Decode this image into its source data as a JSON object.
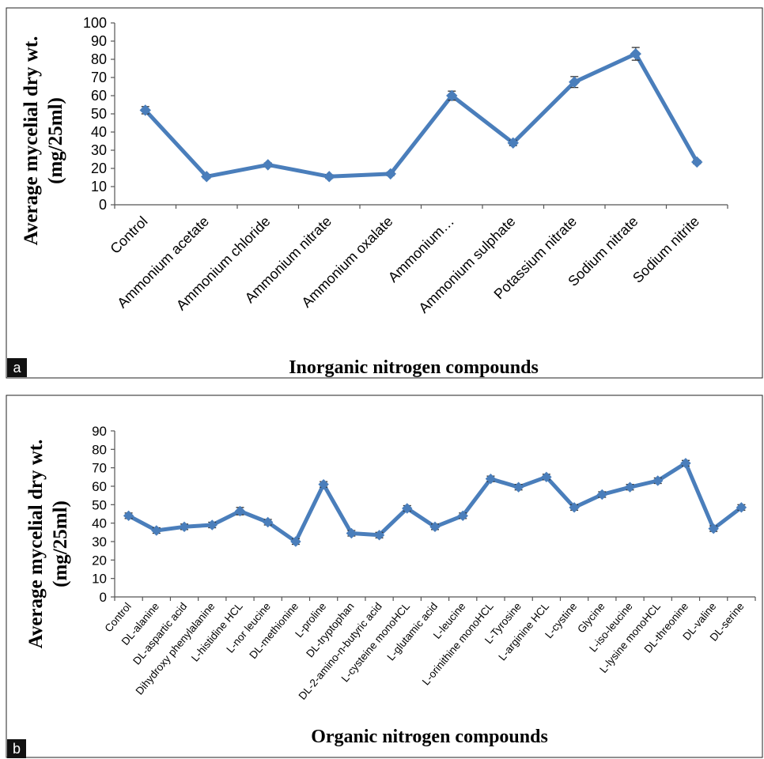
{
  "chart_data": [
    {
      "type": "line",
      "panel_label": "a",
      "xlabel": "Inorganic nitrogen compounds",
      "ylabel_lines": [
        "Average mycelial dry wt.",
        "(mg/25ml)"
      ],
      "ylim": [
        0,
        100
      ],
      "yticks": [
        "0",
        "10",
        "20",
        "30",
        "40",
        "50",
        "60",
        "70",
        "80",
        "90",
        "100"
      ],
      "categories": [
        "Control",
        "Ammonium acetate",
        "Ammonium chloride",
        "Ammonium nitrate",
        "Ammonium oxalate",
        "Ammonium…",
        "Ammonium sulphate",
        "Potassium nitrate",
        "Sodium nitrate",
        "Sodium nitrite"
      ],
      "series": [
        {
          "values": [
            52,
            15.5,
            22,
            15.5,
            17,
            60,
            34,
            67.5,
            83,
            23.5
          ],
          "errors": [
            2,
            1,
            1,
            1,
            1,
            2.5,
            1.5,
            3,
            3.5,
            1
          ]
        }
      ],
      "grid": false,
      "line_color": "#4a7ebb"
    },
    {
      "type": "line",
      "panel_label": "b",
      "xlabel": "Organic nitrogen compounds",
      "ylabel_lines": [
        "Average mycelial dry wt.",
        "(mg/25ml)"
      ],
      "ylim": [
        0,
        90
      ],
      "yticks": [
        "0",
        "10",
        "20",
        "30",
        "40",
        "50",
        "60",
        "70",
        "80",
        "90"
      ],
      "categories": [
        "Control",
        "DL-alanine",
        "DL-aspartic acid",
        "Dihydroxy phenylalanine",
        "L-histidine HCL",
        "L-nor leucine",
        "DL-methionine",
        "L-proline",
        "DL-tryptophan",
        "DL-2-amino-n-butyric acid",
        "L-cysteine monoHCL",
        "L-glutamic acid",
        "L-leucine",
        "L-orinithine monoHCL",
        "L-Tyrosine",
        "L-arginine HCL",
        "L-cystine",
        "Glycine",
        "L-iso-leucine",
        "L-lysine monoHCL",
        "DL-threonine",
        "DL-valine",
        "DL-serine"
      ],
      "series": [
        {
          "values": [
            44,
            36,
            38,
            39,
            46.5,
            40.5,
            30,
            61,
            34.5,
            33.5,
            48,
            38,
            44,
            64,
            59.5,
            65,
            48.5,
            55.5,
            59.5,
            63,
            72.5,
            37,
            48.5
          ],
          "errors": [
            1.5,
            1.5,
            1.5,
            1.5,
            2,
            1.5,
            1.5,
            1.5,
            1.5,
            1.5,
            1.5,
            1.5,
            1.5,
            1.5,
            1.5,
            1.5,
            1.5,
            1.5,
            1.5,
            1.5,
            1.5,
            1.5,
            1.5
          ]
        }
      ],
      "grid": false,
      "line_color": "#4a7ebb"
    }
  ]
}
